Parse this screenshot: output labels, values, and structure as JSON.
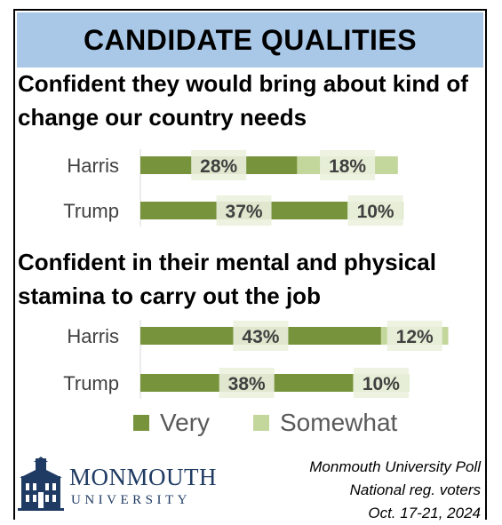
{
  "header": {
    "title": "CANDIDATE QUALITIES"
  },
  "chart_data": [
    {
      "type": "bar",
      "orientation": "horizontal",
      "stacked": true,
      "title": "Confident they would bring about kind of change our country needs",
      "categories": [
        "Harris",
        "Trump"
      ],
      "series": [
        {
          "name": "Very",
          "values": [
            28,
            37
          ],
          "color": "#77933c"
        },
        {
          "name": "Somewhat",
          "values": [
            18,
            10
          ],
          "color": "#c3d69b"
        }
      ],
      "data_labels": [
        [
          "28%",
          "18%"
        ],
        [
          "37%",
          "10%"
        ]
      ],
      "legend": "bottom"
    },
    {
      "type": "bar",
      "orientation": "horizontal",
      "stacked": true,
      "title": "Confident in their mental and physical stamina to carry out the job",
      "categories": [
        "Harris",
        "Trump"
      ],
      "series": [
        {
          "name": "Very",
          "values": [
            43,
            38
          ],
          "color": "#77933c"
        },
        {
          "name": "Somewhat",
          "values": [
            12,
            10
          ],
          "color": "#c3d69b"
        }
      ],
      "data_labels": [
        [
          "43%",
          "12%"
        ],
        [
          "38%",
          "10%"
        ]
      ],
      "legend": "bottom"
    }
  ],
  "legend": {
    "very": "Very",
    "somewhat": "Somewhat"
  },
  "logo": {
    "name": "MONMOUTH",
    "sub": "UNIVERSITY"
  },
  "source": {
    "line1": "Monmouth University Poll",
    "line2": "National reg. voters",
    "line3": "Oct. 17-21, 2024"
  },
  "colors": {
    "banner": "#a9c8e8",
    "very": "#77933c",
    "somewhat": "#c3d69b",
    "label_bg": "#ebf1de"
  }
}
